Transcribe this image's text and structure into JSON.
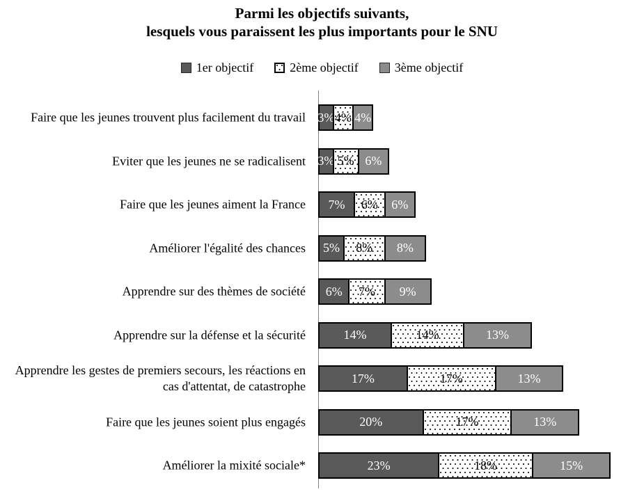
{
  "title": {
    "line1": "Parmi les objectifs suivants,",
    "line2": "lesquels vous paraissent les plus importants pour le SNU"
  },
  "legend": {
    "items": [
      {
        "label": "1er objectif",
        "swatch": "solid-dark"
      },
      {
        "label": "2ème objectif",
        "swatch": "dotted-white"
      },
      {
        "label": "3ème objectif",
        "swatch": "solid-gray"
      }
    ]
  },
  "colors": {
    "series_1_fill": "#595959",
    "series_2_fill": "#FFFFFF",
    "series_2_dots": "#000000",
    "series_3_fill": "#8C8C8C",
    "bar_border": "#000000",
    "axis_line": "#7F7F7F",
    "text": "#000000",
    "background": "#FFFFFF"
  },
  "chart_data": {
    "type": "bar",
    "orientation": "horizontal",
    "stacked": true,
    "title": "Parmi les objectifs suivants, lesquels vous paraissent les plus importants pour le SNU",
    "xlabel": "",
    "ylabel": "",
    "xlim": [
      0,
      60
    ],
    "grid": false,
    "legend_position": "top",
    "value_suffix": "%",
    "data_labels": "inside-center",
    "categories": [
      "Faire que les jeunes trouvent plus facilement du travail",
      "Eviter que les jeunes ne se radicalisent",
      "Faire que les jeunes aiment la France",
      "Améliorer l'égalité des chances",
      "Apprendre sur des thèmes de société",
      "Apprendre sur la défense et la sécurité",
      "Apprendre les gestes de premiers secours, les réactions en cas d'attentat, de catastrophe",
      "Faire que les jeunes soient plus engagés",
      "Améliorer la mixité sociale*"
    ],
    "series": [
      {
        "name": "1er objectif",
        "style": "solid-dark",
        "values": [
          3,
          3,
          7,
          5,
          6,
          14,
          17,
          20,
          23
        ]
      },
      {
        "name": "2ème objectif",
        "style": "dotted-white",
        "values": [
          4,
          5,
          6,
          8,
          7,
          14,
          17,
          17,
          18
        ]
      },
      {
        "name": "3ème objectif",
        "style": "solid-gray",
        "values": [
          4,
          6,
          6,
          8,
          9,
          13,
          13,
          13,
          15
        ]
      }
    ]
  }
}
